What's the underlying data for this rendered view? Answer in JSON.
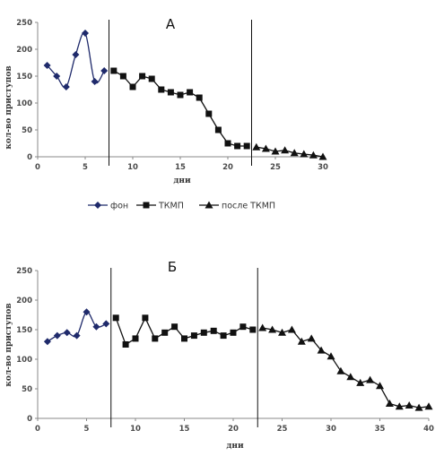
{
  "figure": {
    "legend": {
      "items": [
        {
          "key": "fon",
          "label": "фон",
          "marker": "diamond",
          "color": "#1f2a6b"
        },
        {
          "key": "tkmp",
          "label": "ТКМП",
          "marker": "square",
          "color": "#111111"
        },
        {
          "key": "after",
          "label": "после ТКМП",
          "marker": "triangle",
          "color": "#111111"
        }
      ]
    }
  },
  "chart_data": [
    {
      "type": "line",
      "title": "А",
      "xlabel": "дни",
      "ylabel": "кол-во приступов",
      "xlim": [
        0,
        30
      ],
      "ylim": [
        0,
        250
      ],
      "xticks": [
        "0",
        "5",
        "10",
        "15",
        "20",
        "25",
        "30"
      ],
      "yticks": [
        "0",
        "50",
        "100",
        "150",
        "200",
        "250"
      ],
      "separators_x": [
        7.5,
        22.5
      ],
      "series": [
        {
          "name": "фон",
          "marker": "diamond",
          "color": "#1f2a6b",
          "x": [
            1,
            2,
            3,
            4,
            5,
            6,
            7
          ],
          "y": [
            170,
            150,
            130,
            190,
            230,
            140,
            160
          ]
        },
        {
          "name": "ТКМП",
          "marker": "square",
          "color": "#111111",
          "x": [
            8,
            9,
            10,
            11,
            12,
            13,
            14,
            15,
            16,
            17,
            18,
            19,
            20,
            21,
            22
          ],
          "y": [
            160,
            150,
            130,
            150,
            145,
            125,
            120,
            115,
            120,
            110,
            80,
            50,
            25,
            20,
            20
          ]
        },
        {
          "name": "после ТКМП",
          "marker": "triangle",
          "color": "#111111",
          "x": [
            23,
            24,
            25,
            26,
            27,
            28,
            29,
            30
          ],
          "y": [
            18,
            15,
            10,
            12,
            7,
            5,
            3,
            0
          ]
        }
      ]
    },
    {
      "type": "line",
      "title": "Б",
      "xlabel": "дни",
      "ylabel": "кол-во приступов",
      "xlim": [
        0,
        40
      ],
      "ylim": [
        0,
        250
      ],
      "xticks": [
        "0",
        "5",
        "10",
        "15",
        "20",
        "25",
        "30",
        "35",
        "40"
      ],
      "yticks": [
        "0",
        "50",
        "100",
        "150",
        "200",
        "250"
      ],
      "separators_x": [
        7.5,
        22.5
      ],
      "series": [
        {
          "name": "фон",
          "marker": "diamond",
          "color": "#1f2a6b",
          "x": [
            1,
            2,
            3,
            4,
            5,
            6,
            7
          ],
          "y": [
            130,
            140,
            145,
            140,
            180,
            155,
            160
          ]
        },
        {
          "name": "ТКМП",
          "marker": "square",
          "color": "#111111",
          "x": [
            8,
            9,
            10,
            11,
            12,
            13,
            14,
            15,
            16,
            17,
            18,
            19,
            20,
            21,
            22
          ],
          "y": [
            170,
            125,
            135,
            170,
            135,
            145,
            155,
            135,
            140,
            145,
            148,
            140,
            145,
            155,
            150
          ]
        },
        {
          "name": "после ТКМП",
          "marker": "triangle",
          "color": "#111111",
          "x": [
            23,
            24,
            25,
            26,
            27,
            28,
            29,
            30,
            31,
            32,
            33,
            34,
            35,
            36,
            37,
            38,
            39,
            40
          ],
          "y": [
            153,
            150,
            145,
            150,
            130,
            135,
            115,
            105,
            80,
            70,
            60,
            65,
            55,
            25,
            20,
            22,
            18,
            20
          ]
        }
      ]
    }
  ]
}
